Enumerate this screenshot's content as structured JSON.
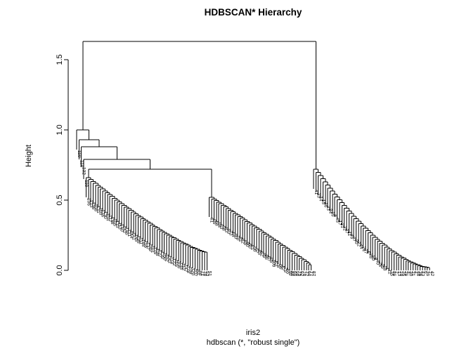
{
  "chart_data": {
    "type": "dendrogram",
    "title": "HDBSCAN* Hierarchy",
    "ylabel": "Height",
    "xlabel": "iris2",
    "sub": "hdbscan (*, \"robust single\")",
    "yticks": [
      0.0,
      0.5,
      1.0,
      1.5
    ],
    "ylim": [
      0,
      1.72
    ],
    "n_leaves": 150,
    "root_height": 1.63,
    "hang": 0.14,
    "legend": "none",
    "grid": false,
    "tree": {
      "h": 1.63,
      "children": [
        {
          "h": 1.0,
          "children": [
            {
              "leaf": 110
            },
            {
              "h": 0.93,
              "children": [
                {
                  "leaf": 118
                },
                {
                  "h": 0.88,
                  "children": [
                    {
                      "leaf": 132
                    },
                    {
                      "h": 0.79,
                      "children": [
                        {
                          "leaf": 119
                        },
                        {
                          "h": 0.72,
                          "children": [
                            {
                              "comb": {
                                "h_start": 0.66,
                                "h_end": 0.13,
                                "curve": 1.3,
                                "labels": [
                                  106,
                                  123,
                                  136,
                                  108,
                                  131,
                                  103,
                                  126,
                                  130,
                                  104,
                                  117,
                                  138,
                                  105,
                                  133,
                                  113,
                                  140,
                                  142,
                                  146,
                                  121,
                                  144,
                                  141,
                                  145,
                                  125,
                                  111,
                                  148,
                                  116,
                                  137,
                                  149,
                                  101,
                                  129,
                                  128,
                                  127,
                                  139,
                                  150,
                                  102,
                                  143,
                                  114,
                                  122,
                                  115,
                                  109,
                                  135,
                                  112,
                                  147,
                                  124,
                                  134,
                                  120,
                                  107,
                                  84,
                                  86,
                                  71,
                                  78,
                                  53,
                                  51
                                ]
                              }
                            },
                            {
                              "comb": {
                                "h_start": 0.52,
                                "h_end": 0.04,
                                "curve": 1.0,
                                "labels": [
                                  61,
                                  99,
                                  58,
                                  94,
                                  63,
                                  68,
                                  83,
                                  93,
                                  73,
                                  54,
                                  90,
                                  70,
                                  81,
                                  82,
                                  65,
                                  80,
                                  60,
                                  91,
                                  56,
                                  67,
                                  85,
                                  62,
                                  89,
                                  96,
                                  97,
                                  95,
                                  100,
                                  52,
                                  76,
                                  66,
                                  57,
                                  79,
                                  55,
                                  59,
                                  88,
                                  69,
                                  98,
                                  75,
                                  92,
                                  74,
                                  72,
                                  64,
                                  77,
                                  87
                                ]
                              }
                            }
                          ]
                        }
                      ]
                    }
                  ]
                }
              ]
            }
          ]
        },
        {
          "comb": {
            "h_start": 0.72,
            "h_end": 0.02,
            "curve": 1.6,
            "labels": [
              41,
              23,
              14,
              15,
              16,
              33,
              34,
              19,
              6,
              45,
              17,
              21,
              32,
              37,
              11,
              49,
              47,
              20,
              22,
              44,
              24,
              27,
              5,
              38,
              50,
              8,
              40,
              28,
              29,
              18,
              1,
              12,
              25,
              46,
              2,
              13,
              10,
              35,
              26,
              3,
              30,
              31,
              4,
              48,
              36,
              43,
              9,
              39,
              7,
              42
            ]
          }
        }
      ]
    }
  }
}
